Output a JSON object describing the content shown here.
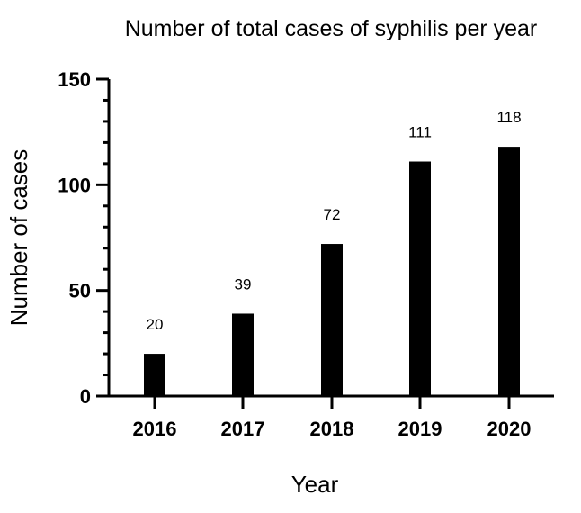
{
  "chart_data": {
    "type": "bar",
    "title": "Number of total cases of syphilis per year",
    "xlabel": "Year",
    "ylabel": "Number of cases",
    "categories": [
      "2016",
      "2017",
      "2018",
      "2019",
      "2020"
    ],
    "values": [
      20,
      39,
      72,
      111,
      118
    ],
    "data_labels": [
      "20",
      "39",
      "72",
      "111",
      "118"
    ],
    "ylim": [
      0,
      150
    ],
    "yticks": [
      0,
      50,
      100,
      150
    ],
    "ytick_labels": [
      "0",
      "50",
      "100",
      "150"
    ],
    "y_minor_step": 10,
    "bar_color": "#000000",
    "grid": false,
    "legend": "none"
  }
}
